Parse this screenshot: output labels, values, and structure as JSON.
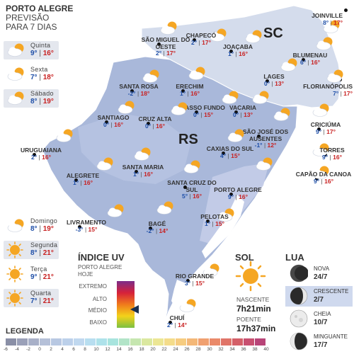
{
  "header": {
    "city": "PORTO ALEGRE",
    "line2": "PREVISÃO",
    "line3": "PARA 7 DIAS"
  },
  "regions": {
    "sc": "SC",
    "rs": "RS"
  },
  "forecast": [
    {
      "day": "Quinta",
      "min": "9°",
      "max": "16°",
      "icon": "partly-cloudy-icon",
      "shaded": true
    },
    {
      "day": "Sexta",
      "min": "7°",
      "max": "18°",
      "icon": "partly-cloudy-icon",
      "shaded": false
    },
    {
      "day": "Sábado",
      "min": "8°",
      "max": "19°",
      "icon": "partly-cloudy-icon",
      "shaded": true
    },
    {
      "day": "Domingo",
      "min": "8°",
      "max": "19°",
      "icon": "partly-cloudy-icon",
      "shaded": false
    },
    {
      "day": "Segunda",
      "min": "8°",
      "max": "21°",
      "icon": "sun-icon",
      "shaded": true
    },
    {
      "day": "Terça",
      "min": "9°",
      "max": "21°",
      "icon": "sun-icon",
      "shaded": false
    },
    {
      "day": "Quarta",
      "min": "7°",
      "max": "21°",
      "icon": "sun-icon",
      "shaded": true
    }
  ],
  "cities": [
    {
      "name": "JOINVILLE",
      "min": "8°",
      "max": "17°"
    },
    {
      "name": "SÃO MIGUEL DO OESTE",
      "min": "2°",
      "max": "17°"
    },
    {
      "name": "CHAPECÓ",
      "min": "2°",
      "max": "17°"
    },
    {
      "name": "JOAÇABA",
      "min": "1°",
      "max": "16°"
    },
    {
      "name": "BLUMENAU",
      "min": "6°",
      "max": "16°"
    },
    {
      "name": "LAGES",
      "min": "0°",
      "max": "13°"
    },
    {
      "name": "FLORIANÓPOLIS",
      "min": "7°",
      "max": "17°"
    },
    {
      "name": "SANTA ROSA",
      "min": "-2°",
      "max": "18°"
    },
    {
      "name": "ERECHIM",
      "min": "1°",
      "max": "16°"
    },
    {
      "name": "PASSO FUNDO",
      "min": "0°",
      "max": "15°"
    },
    {
      "name": "VACARIA",
      "min": "0°",
      "max": "13°"
    },
    {
      "name": "SANTIAGO",
      "min": "0°",
      "max": "16°"
    },
    {
      "name": "CRUZ ALTA",
      "min": "0°",
      "max": "16°"
    },
    {
      "name": "SÃO JOSÉ DOS AUSENTES",
      "min": "-1°",
      "max": "12°"
    },
    {
      "name": "CRICIÚMA",
      "min": "9°",
      "max": "17°"
    },
    {
      "name": "URUGUAIANA",
      "min": "2°",
      "max": "16°"
    },
    {
      "name": "TORRES",
      "min": "9°",
      "max": "16°"
    },
    {
      "name": "CAXIAS DO SUL",
      "min": "4°",
      "max": "15°"
    },
    {
      "name": "ALEGRETE",
      "min": "1°",
      "max": "16°"
    },
    {
      "name": "SANTA MARIA",
      "min": "1°",
      "max": "16°"
    },
    {
      "name": "CAPÃO DA CANOA",
      "min": "9°",
      "max": "16°"
    },
    {
      "name": "SANTA CRUZ DO SUL",
      "min": "5°",
      "max": "16°"
    },
    {
      "name": "PORTO ALEGRE",
      "min": "9°",
      "max": "16°"
    },
    {
      "name": "LIVRAMENTO",
      "min": "-3°",
      "max": "15°"
    },
    {
      "name": "BAGÉ",
      "min": "-2°",
      "max": "14°"
    },
    {
      "name": "PELOTAS",
      "min": "1°",
      "max": "15°"
    },
    {
      "name": "RIO GRANDE",
      "min": "3°",
      "max": "15°"
    },
    {
      "name": "CHUÍ",
      "min": "2°",
      "max": "14°"
    }
  ],
  "uv": {
    "title": "ÍNDICE UV",
    "subtitle1": "PORTO ALEGRE",
    "subtitle2": "HOJE",
    "levels": [
      "EXTREMO",
      "ALTO",
      "MÉDIO",
      "BAIXO"
    ],
    "current_level": "MÉDIO",
    "colors": [
      "#7b2d8a",
      "#d6213a",
      "#f07a1c",
      "#f3d21a",
      "#7bc043"
    ]
  },
  "sun": {
    "title": "SOL",
    "sunrise_label": "NASCENTE",
    "sunrise_time": "7h21min",
    "sunset_label": "POENTE",
    "sunset_time": "17h37min"
  },
  "moon": {
    "title": "LUA",
    "phases": [
      {
        "name": "NOVA",
        "date": "24/7",
        "icon": "new-moon-icon",
        "shaded": false
      },
      {
        "name": "CRESCENTE",
        "date": "2/7",
        "icon": "waxing-moon-icon",
        "shaded": true
      },
      {
        "name": "CHEIA",
        "date": "10/7",
        "icon": "full-moon-icon",
        "shaded": false
      },
      {
        "name": "MINGUANTE",
        "date": "17/7",
        "icon": "waning-moon-icon",
        "shaded": false
      }
    ]
  },
  "legend": {
    "title": "LEGENDA",
    "ticks": [
      "-6",
      "-4",
      "-2",
      "0",
      "2",
      "4",
      "6",
      "8",
      "10",
      "12",
      "14",
      "16",
      "18",
      "20",
      "22",
      "24",
      "26",
      "28",
      "30",
      "32",
      "34",
      "36",
      "38",
      "40"
    ],
    "colors": [
      "#8a8fa6",
      "#9aa0b8",
      "#a8b0c8",
      "#b5c0d8",
      "#b8c8e2",
      "#bcd0ea",
      "#c0d8ef",
      "#b8def0",
      "#aee2ea",
      "#a8e4de",
      "#b2e4c8",
      "#c6e6b0",
      "#dbe8a0",
      "#ece694",
      "#f4dc8a",
      "#f6cc80",
      "#f4b878",
      "#f0a070",
      "#ea8a6a",
      "#e07468",
      "#d46068",
      "#c85070",
      "#b84478"
    ]
  }
}
